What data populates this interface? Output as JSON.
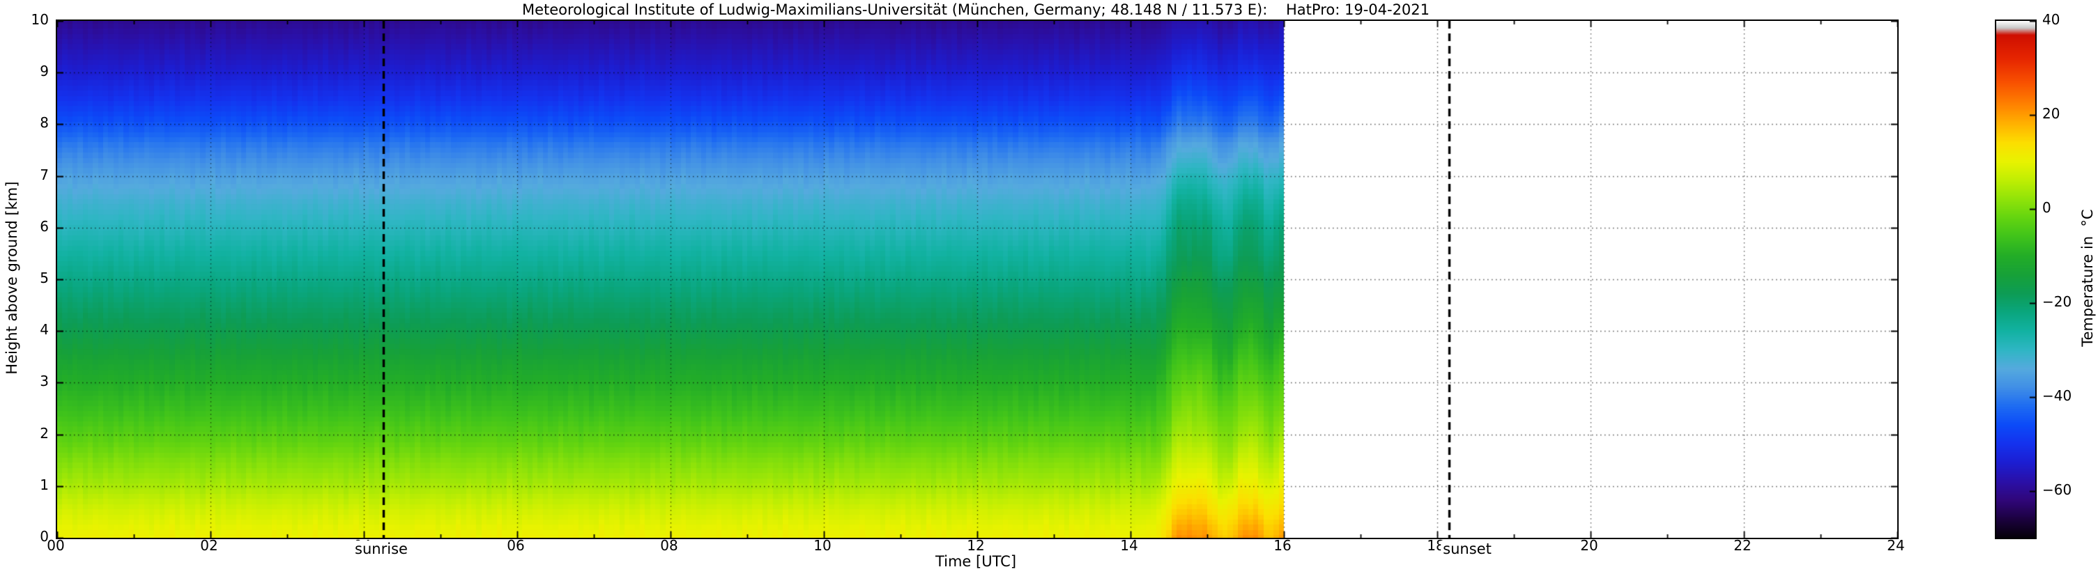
{
  "chart_data": {
    "type": "heatmap",
    "title": "Meteorological Institute of Ludwig-Maximilians-Universität (München, Germany; 48.148 N / 11.573 E):    HatPro: 19-04-2021",
    "xlabel": "Time [UTC]",
    "ylabel": "Height above ground [km]",
    "xlim": [
      0,
      24
    ],
    "ylim": [
      0,
      10
    ],
    "grid": true,
    "data_time_range": [
      0,
      16
    ],
    "x_ticks": [
      {
        "v": 0,
        "label": "00"
      },
      {
        "v": 2,
        "label": "02"
      },
      {
        "v": 4,
        "label": "04"
      },
      {
        "v": 6,
        "label": "06"
      },
      {
        "v": 8,
        "label": "08"
      },
      {
        "v": 10,
        "label": "10"
      },
      {
        "v": 12,
        "label": "12"
      },
      {
        "v": 14,
        "label": "14"
      },
      {
        "v": 16,
        "label": "16"
      },
      {
        "v": 18,
        "label": "18"
      },
      {
        "v": 20,
        "label": "20"
      },
      {
        "v": 22,
        "label": "22"
      },
      {
        "v": 24,
        "label": "24"
      }
    ],
    "y_ticks": [
      {
        "v": 0,
        "label": "0"
      },
      {
        "v": 1,
        "label": "1"
      },
      {
        "v": 2,
        "label": "2"
      },
      {
        "v": 3,
        "label": "3"
      },
      {
        "v": 4,
        "label": "4"
      },
      {
        "v": 5,
        "label": "5"
      },
      {
        "v": 6,
        "label": "6"
      },
      {
        "v": 7,
        "label": "7"
      },
      {
        "v": 8,
        "label": "8"
      },
      {
        "v": 9,
        "label": "9"
      },
      {
        "v": 10,
        "label": "10"
      }
    ],
    "annotations": [
      {
        "name": "sunrise",
        "x": 4.25,
        "label": "sunrise"
      },
      {
        "name": "sunset",
        "x": 18.15,
        "label": "sunset"
      }
    ],
    "colorbar": {
      "label": "Temperature in  °C",
      "min": -70,
      "max": 40,
      "ticks": [
        {
          "v": 40,
          "label": "40"
        },
        {
          "v": 20,
          "label": "20"
        },
        {
          "v": 0,
          "label": "0"
        },
        {
          "v": -20,
          "label": "−20"
        },
        {
          "v": -40,
          "label": "−40"
        },
        {
          "v": -60,
          "label": "−60"
        }
      ]
    },
    "colormap": [
      {
        "v": -70,
        "c": "#05000a"
      },
      {
        "v": -66,
        "c": "#1c0140"
      },
      {
        "v": -62,
        "c": "#30067a"
      },
      {
        "v": -58,
        "c": "#2a10a8"
      },
      {
        "v": -54,
        "c": "#1c1ed2"
      },
      {
        "v": -50,
        "c": "#1432ee"
      },
      {
        "v": -46,
        "c": "#0c4bf8"
      },
      {
        "v": -42,
        "c": "#1e6cf2"
      },
      {
        "v": -38,
        "c": "#418fe6"
      },
      {
        "v": -34,
        "c": "#55aade"
      },
      {
        "v": -30,
        "c": "#2fb6c4"
      },
      {
        "v": -26,
        "c": "#12b2a2"
      },
      {
        "v": -22,
        "c": "#0aa67e"
      },
      {
        "v": -18,
        "c": "#0d9c55"
      },
      {
        "v": -14,
        "c": "#17a138"
      },
      {
        "v": -10,
        "c": "#23ad27"
      },
      {
        "v": -6,
        "c": "#3fc31b"
      },
      {
        "v": -2,
        "c": "#63d410"
      },
      {
        "v": 2,
        "c": "#90e309"
      },
      {
        "v": 6,
        "c": "#bfee03"
      },
      {
        "v": 10,
        "c": "#e8f300"
      },
      {
        "v": 14,
        "c": "#fcdf00"
      },
      {
        "v": 18,
        "c": "#ffb300"
      },
      {
        "v": 22,
        "c": "#ff8400"
      },
      {
        "v": 27,
        "c": "#f85000"
      },
      {
        "v": 32,
        "c": "#e62500"
      },
      {
        "v": 37,
        "c": "#cf0f00"
      },
      {
        "v": 38.5,
        "c": "#c9c9c9"
      },
      {
        "v": 40,
        "c": "#ffffff"
      }
    ],
    "grid_data": {
      "units": {
        "time": "UTC hours",
        "height": "km",
        "temperature": "°C"
      },
      "times": [
        0.0,
        14.3,
        14.45,
        14.6,
        15.0,
        15.15,
        15.3,
        15.45,
        15.65,
        15.8,
        16.0
      ],
      "heights": [
        0,
        0.5,
        1,
        1.5,
        2,
        2.5,
        3,
        3.5,
        4,
        4.5,
        5,
        5.5,
        6,
        6.5,
        7,
        7.3,
        7.6,
        8,
        8.5,
        9,
        9.5,
        10
      ],
      "temps": [
        [
          11,
          8,
          4,
          0.5,
          -3.5,
          -7,
          -10,
          -13.5,
          -17,
          -20,
          -23,
          -26,
          -29,
          -32,
          -35.5,
          -38,
          -40.5,
          -45,
          -50,
          -54,
          -57,
          -60
        ],
        [
          11,
          8,
          4,
          0.5,
          -3.5,
          -7,
          -10,
          -13.5,
          -17,
          -20,
          -23,
          -26,
          -29,
          -32,
          -35.5,
          -38,
          -40.5,
          -45,
          -50,
          -54,
          -57,
          -60
        ],
        [
          14,
          10.5,
          6,
          2,
          -1.5,
          -5,
          -8,
          -11.5,
          -15,
          -18,
          -21,
          -24,
          -27,
          -30,
          -34,
          -36.5,
          -39,
          -44,
          -49,
          -53,
          -56.5,
          -59.5
        ],
        [
          21,
          16,
          11.5,
          7.5,
          3.5,
          0.5,
          -2.5,
          -6,
          -9.5,
          -12.5,
          -15.5,
          -18.5,
          -20.5,
          -24,
          -28.5,
          -31.5,
          -34.5,
          -40,
          -45,
          -50,
          -54,
          -57.5
        ],
        [
          21,
          16,
          11.5,
          7.5,
          3.5,
          0.5,
          -2.5,
          -6,
          -9.5,
          -12.5,
          -15.5,
          -18.5,
          -20.5,
          -24,
          -28.5,
          -31.5,
          -34.5,
          -40,
          -45,
          -50,
          -54,
          -57.5
        ],
        [
          16,
          12,
          7.5,
          3.5,
          0,
          -3,
          -6.5,
          -10,
          -13.5,
          -16.5,
          -19.5,
          -22.5,
          -25,
          -28.5,
          -32,
          -35,
          -37.5,
          -42.5,
          -47.5,
          -52,
          -55.5,
          -59
        ],
        [
          16,
          12,
          7.5,
          3.5,
          0,
          -3,
          -6.5,
          -10,
          -13.5,
          -16.5,
          -19.5,
          -22.5,
          -25,
          -28.5,
          -32,
          -35,
          -37.5,
          -42.5,
          -47.5,
          -52,
          -55.5,
          -59
        ],
        [
          21,
          16,
          11.5,
          7.5,
          3.5,
          0.5,
          -2.5,
          -6,
          -9.5,
          -12.5,
          -15.5,
          -18.5,
          -20.5,
          -24,
          -28.5,
          -31.5,
          -34.5,
          -40,
          -45,
          -50,
          -54,
          -57.5
        ],
        [
          21,
          16,
          11.5,
          7.5,
          3.5,
          0.5,
          -2.5,
          -6,
          -9.5,
          -12.5,
          -15.5,
          -18.5,
          -20.5,
          -24,
          -28.5,
          -31.5,
          -34.5,
          -40,
          -45,
          -50,
          -54,
          -57.5
        ],
        [
          16,
          12,
          7.5,
          3.5,
          0,
          -3,
          -6.5,
          -10,
          -13.5,
          -16.5,
          -19.5,
          -22.5,
          -25,
          -28.5,
          -32,
          -35,
          -37.5,
          -42.5,
          -47.5,
          -52,
          -55.5,
          -59
        ],
        [
          21,
          16,
          11.5,
          7.5,
          3.5,
          0.5,
          -2.5,
          -6,
          -9.5,
          -12.5,
          -15.5,
          -18.5,
          -20.5,
          -24,
          -28.5,
          -31.5,
          -34.5,
          -40,
          -45,
          -50,
          -54,
          -57.5
        ]
      ]
    }
  }
}
